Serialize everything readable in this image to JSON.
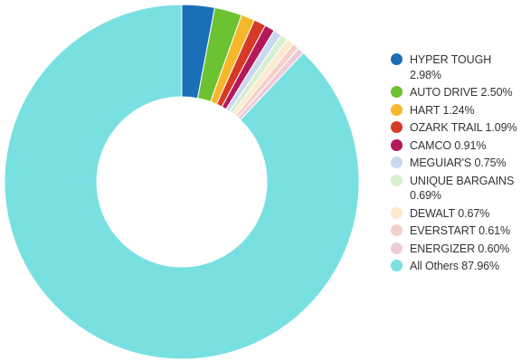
{
  "chart_data": {
    "type": "pie",
    "variant": "donut",
    "legend_position": "right",
    "slices": [
      {
        "label": "HYPER TOUGH",
        "value": 2.98,
        "legend_text": "HYPER TOUGH 2.98%",
        "color": "#1a6fb8"
      },
      {
        "label": "AUTO DRIVE",
        "value": 2.5,
        "legend_text": "AUTO DRIVE 2.50%",
        "color": "#6cc230"
      },
      {
        "label": "HART",
        "value": 1.24,
        "legend_text": "HART 1.24%",
        "color": "#f7b72a"
      },
      {
        "label": "OZARK TRAIL",
        "value": 1.09,
        "legend_text": "OZARK TRAIL 1.09%",
        "color": "#d63a26"
      },
      {
        "label": "CAMCO",
        "value": 0.91,
        "legend_text": "CAMCO 0.91%",
        "color": "#b5185a"
      },
      {
        "label": "MEGUIAR'S",
        "value": 0.75,
        "legend_text": "MEGUIAR'S 0.75%",
        "color": "#c9d8ee"
      },
      {
        "label": "UNIQUE BARGAINS",
        "value": 0.69,
        "legend_text": "UNIQUE BARGAINS 0.69%",
        "color": "#d8eed0"
      },
      {
        "label": "DEWALT",
        "value": 0.67,
        "legend_text": "DEWALT 0.67%",
        "color": "#fde9cc"
      },
      {
        "label": "EVERSTART",
        "value": 0.61,
        "legend_text": "EVERSTART 0.61%",
        "color": "#f6d0cb"
      },
      {
        "label": "ENERGIZER",
        "value": 0.6,
        "legend_text": "ENERGIZER 0.60%",
        "color": "#eecbd8"
      },
      {
        "label": "All Others",
        "value": 87.96,
        "legend_text": "All Others 87.96%",
        "color": "#79e0e2"
      }
    ]
  }
}
